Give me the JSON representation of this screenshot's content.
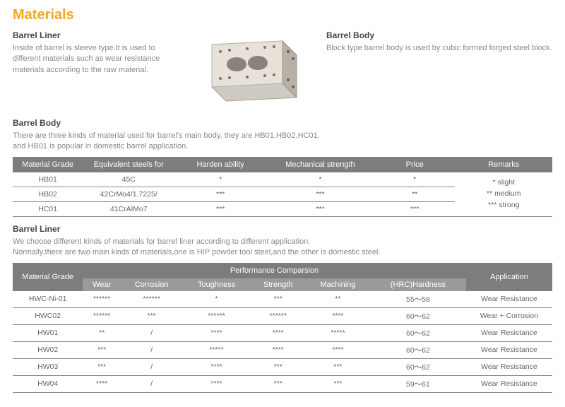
{
  "title": "Materials",
  "barrel_liner_top": {
    "heading": "Barrel Liner",
    "text": "Inside of barrel is sleeve type.It is used to different materials such as wear resistance materials according to the raw material."
  },
  "barrel_body_top": {
    "heading": "Barrel Body",
    "text": "Block type barrel body is used by cubic formed forged steel block."
  },
  "barrel_body_section": {
    "heading": "Barrel Body",
    "line1": "There are three kinds of material used for barrel's main body, they are HB01,HB02,HC01.",
    "line2": "and HB01 is popular in domestic barrel application."
  },
  "table1": {
    "headers": {
      "c0": "Material Grade",
      "c1": "Equivalent steels for",
      "c2": "Harden ability",
      "c3": "Mechanical strength",
      "c4": "Price",
      "c5": "Remarks"
    },
    "rows": [
      {
        "c0": "HB01",
        "c1": "45C",
        "c2": "*",
        "c3": "*",
        "c4": "*"
      },
      {
        "c0": "HB02",
        "c1": "42CrMo4/1.7225/",
        "c2": "***",
        "c3": "***",
        "c4": "**"
      },
      {
        "c0": "HC01",
        "c1": "41CrAlMo7",
        "c2": "***",
        "c3": "***",
        "c4": "***"
      }
    ],
    "remarks": {
      "l1": "*   slight",
      "l2": "**  medium",
      "l3": "*** strong"
    }
  },
  "barrel_liner_section": {
    "heading": "Barrel Liner",
    "line1": "We choose different kinds of materials for barrel liner according to different application.",
    "line2": "Normally,there are two main kinds of materials,one is HIP powder tool steel,and the other is domestic steel."
  },
  "table2": {
    "headers": {
      "c0": "Material Grade",
      "group": "Performance Comparsion",
      "c1": "Wear",
      "c2": "Corrosion",
      "c3": "Toughness",
      "c4": "Strength",
      "c5": "Machining",
      "c6": "(HRC)Hardness",
      "c7": "Application"
    },
    "rows": [
      {
        "c0": "HWC-Ni-01",
        "c1": "******",
        "c2": "******",
        "c3": "*",
        "c4": "***",
        "c5": "**",
        "c6": "55～58",
        "c7": "Wear Resistance"
      },
      {
        "c0": "HWC02",
        "c1": "******",
        "c2": "***",
        "c3": "******",
        "c4": "******",
        "c5": "****",
        "c6": "60～62",
        "c7": "Wear + Corrosion"
      },
      {
        "c0": "HW01",
        "c1": "**",
        "c2": "/",
        "c3": "****",
        "c4": "****",
        "c5": "*****",
        "c6": "60～62",
        "c7": "Wear Resistance"
      },
      {
        "c0": "HW02",
        "c1": "***",
        "c2": "/",
        "c3": "*****",
        "c4": "****",
        "c5": "****",
        "c6": "60～62",
        "c7": "Wear Resistance"
      },
      {
        "c0": "HW03",
        "c1": "***",
        "c2": "/",
        "c3": "****",
        "c4": "***",
        "c5": "***",
        "c6": "60～62",
        "c7": "Wear Resistance"
      },
      {
        "c0": "HW04",
        "c1": "****",
        "c2": "/",
        "c3": "****",
        "c4": "***",
        "c5": "***",
        "c6": "59～61",
        "c7": "Wear Resistance"
      }
    ]
  }
}
